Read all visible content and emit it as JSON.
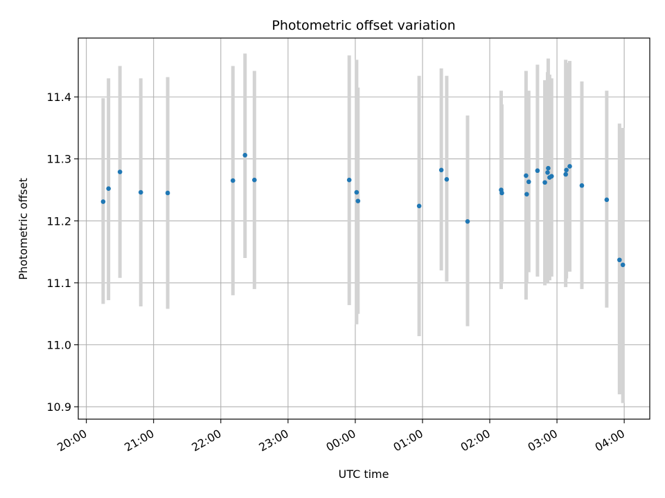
{
  "chart_data": {
    "type": "scatter",
    "title": "Photometric offset variation",
    "xlabel": "UTC time",
    "ylabel": "Photometric offset",
    "x_unit": "hours since 20:00 UTC",
    "xlim": [
      -0.12,
      8.38
    ],
    "ylim": [
      10.88,
      11.495
    ],
    "grid": true,
    "xticks": [
      {
        "value": 0,
        "label": "20:00"
      },
      {
        "value": 1,
        "label": "21:00"
      },
      {
        "value": 2,
        "label": "22:00"
      },
      {
        "value": 3,
        "label": "23:00"
      },
      {
        "value": 4,
        "label": "00:00"
      },
      {
        "value": 5,
        "label": "01:00"
      },
      {
        "value": 6,
        "label": "02:00"
      },
      {
        "value": 7,
        "label": "03:00"
      },
      {
        "value": 8,
        "label": "04:00"
      }
    ],
    "yticks": [
      {
        "value": 10.9,
        "label": "10.9"
      },
      {
        "value": 11.0,
        "label": "11.0"
      },
      {
        "value": 11.1,
        "label": "11.1"
      },
      {
        "value": 11.2,
        "label": "11.2"
      },
      {
        "value": 11.3,
        "label": "11.3"
      },
      {
        "value": 11.4,
        "label": "11.4"
      }
    ],
    "colors": {
      "point": "#1f77b4",
      "errorbar": "#d3d3d3",
      "grid": "#b0b0b0"
    },
    "points": [
      {
        "x": 0.25,
        "y": 11.231,
        "ylow": 11.066,
        "yhigh": 11.398
      },
      {
        "x": 0.33,
        "y": 11.252,
        "ylow": 11.072,
        "yhigh": 11.43
      },
      {
        "x": 0.5,
        "y": 11.279,
        "ylow": 11.108,
        "yhigh": 11.45
      },
      {
        "x": 0.81,
        "y": 11.246,
        "ylow": 11.062,
        "yhigh": 11.43
      },
      {
        "x": 1.21,
        "y": 11.245,
        "ylow": 11.058,
        "yhigh": 11.432
      },
      {
        "x": 2.18,
        "y": 11.265,
        "ylow": 11.08,
        "yhigh": 11.45
      },
      {
        "x": 2.36,
        "y": 11.306,
        "ylow": 11.14,
        "yhigh": 11.47
      },
      {
        "x": 2.5,
        "y": 11.266,
        "ylow": 11.09,
        "yhigh": 11.442
      },
      {
        "x": 3.91,
        "y": 11.266,
        "ylow": 11.064,
        "yhigh": 11.467
      },
      {
        "x": 4.02,
        "y": 11.246,
        "ylow": 11.033,
        "yhigh": 11.46
      },
      {
        "x": 4.04,
        "y": 11.232,
        "ylow": 11.05,
        "yhigh": 11.415
      },
      {
        "x": 4.95,
        "y": 11.224,
        "ylow": 11.014,
        "yhigh": 11.434
      },
      {
        "x": 5.28,
        "y": 11.282,
        "ylow": 11.12,
        "yhigh": 11.446
      },
      {
        "x": 5.36,
        "y": 11.267,
        "ylow": 11.102,
        "yhigh": 11.434
      },
      {
        "x": 5.67,
        "y": 11.199,
        "ylow": 11.03,
        "yhigh": 11.37
      },
      {
        "x": 6.17,
        "y": 11.25,
        "ylow": 11.09,
        "yhigh": 11.41
      },
      {
        "x": 6.18,
        "y": 11.245,
        "ylow": 11.102,
        "yhigh": 11.388
      },
      {
        "x": 6.54,
        "y": 11.273,
        "ylow": 11.073,
        "yhigh": 11.442
      },
      {
        "x": 6.55,
        "y": 11.243,
        "ylow": 11.1,
        "yhigh": 11.4
      },
      {
        "x": 6.58,
        "y": 11.263,
        "ylow": 11.117,
        "yhigh": 11.41
      },
      {
        "x": 6.71,
        "y": 11.281,
        "ylow": 11.11,
        "yhigh": 11.452
      },
      {
        "x": 6.82,
        "y": 11.262,
        "ylow": 11.096,
        "yhigh": 11.427
      },
      {
        "x": 6.86,
        "y": 11.278,
        "ylow": 11.1,
        "yhigh": 11.44
      },
      {
        "x": 6.87,
        "y": 11.285,
        "ylow": 11.108,
        "yhigh": 11.462
      },
      {
        "x": 6.89,
        "y": 11.27,
        "ylow": 11.104,
        "yhigh": 11.436
      },
      {
        "x": 6.92,
        "y": 11.272,
        "ylow": 11.11,
        "yhigh": 11.43
      },
      {
        "x": 7.13,
        "y": 11.275,
        "ylow": 11.093,
        "yhigh": 11.46
      },
      {
        "x": 7.14,
        "y": 11.282,
        "ylow": 11.107,
        "yhigh": 11.455
      },
      {
        "x": 7.19,
        "y": 11.288,
        "ylow": 11.118,
        "yhigh": 11.458
      },
      {
        "x": 7.37,
        "y": 11.257,
        "ylow": 11.09,
        "yhigh": 11.425
      },
      {
        "x": 7.74,
        "y": 11.234,
        "ylow": 11.06,
        "yhigh": 11.41
      },
      {
        "x": 7.93,
        "y": 11.137,
        "ylow": 10.92,
        "yhigh": 11.357
      },
      {
        "x": 7.98,
        "y": 11.129,
        "ylow": 10.906,
        "yhigh": 11.35
      }
    ]
  }
}
